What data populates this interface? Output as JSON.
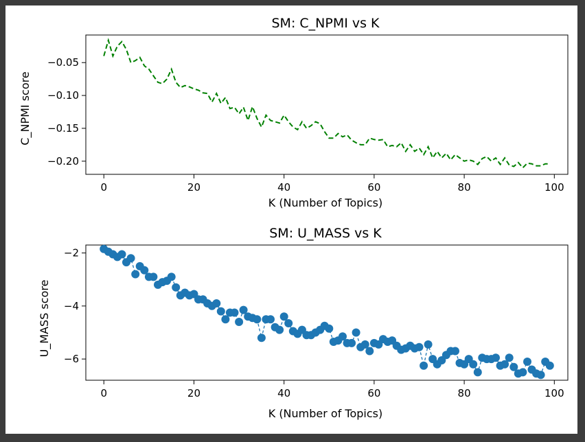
{
  "chart_data": [
    {
      "type": "line",
      "title": "SM: C_NPMI vs K",
      "xlabel": "K (Number of Topics)",
      "ylabel": "C_NPMI score",
      "xlim": [
        -4,
        103
      ],
      "ylim": [
        -0.22,
        -0.008
      ],
      "xticks": [
        0,
        20,
        40,
        60,
        80,
        100
      ],
      "xtick_labels": [
        "0",
        "20",
        "40",
        "60",
        "80",
        "100"
      ],
      "yticks": [
        -0.05,
        -0.1,
        -0.15,
        -0.2
      ],
      "ytick_labels": [
        "−0.05",
        "−0.10",
        "−0.15",
        "−0.20"
      ],
      "line_style": "dashed",
      "color": "#008000",
      "grid": false,
      "x": [
        0,
        1,
        2,
        3,
        4,
        5,
        6,
        7,
        8,
        9,
        10,
        11,
        12,
        13,
        14,
        15,
        16,
        17,
        18,
        19,
        20,
        21,
        22,
        23,
        24,
        25,
        26,
        27,
        28,
        29,
        30,
        31,
        32,
        33,
        34,
        35,
        36,
        37,
        38,
        39,
        40,
        41,
        42,
        43,
        44,
        45,
        46,
        47,
        48,
        49,
        50,
        51,
        52,
        53,
        54,
        55,
        56,
        57,
        58,
        59,
        60,
        61,
        62,
        63,
        64,
        65,
        66,
        67,
        68,
        69,
        70,
        71,
        72,
        73,
        74,
        75,
        76,
        77,
        78,
        79,
        80,
        81,
        82,
        83,
        84,
        85,
        86,
        87,
        88,
        89,
        90,
        91,
        92,
        93,
        94,
        95,
        96,
        97,
        98,
        99
      ],
      "y": [
        -0.04,
        -0.016,
        -0.04,
        -0.025,
        -0.018,
        -0.03,
        -0.05,
        -0.047,
        -0.042,
        -0.055,
        -0.06,
        -0.07,
        -0.08,
        -0.082,
        -0.075,
        -0.06,
        -0.08,
        -0.088,
        -0.085,
        -0.087,
        -0.09,
        -0.092,
        -0.096,
        -0.097,
        -0.11,
        -0.097,
        -0.112,
        -0.103,
        -0.12,
        -0.118,
        -0.128,
        -0.118,
        -0.138,
        -0.117,
        -0.135,
        -0.148,
        -0.13,
        -0.138,
        -0.14,
        -0.142,
        -0.13,
        -0.14,
        -0.148,
        -0.152,
        -0.14,
        -0.15,
        -0.146,
        -0.14,
        -0.143,
        -0.155,
        -0.165,
        -0.165,
        -0.158,
        -0.163,
        -0.16,
        -0.168,
        -0.172,
        -0.175,
        -0.175,
        -0.165,
        -0.167,
        -0.168,
        -0.167,
        -0.178,
        -0.176,
        -0.178,
        -0.172,
        -0.185,
        -0.175,
        -0.185,
        -0.18,
        -0.19,
        -0.178,
        -0.195,
        -0.185,
        -0.195,
        -0.188,
        -0.198,
        -0.19,
        -0.195,
        -0.2,
        -0.198,
        -0.2,
        -0.205,
        -0.196,
        -0.193,
        -0.2,
        -0.195,
        -0.205,
        -0.195,
        -0.206,
        -0.208,
        -0.202,
        -0.21,
        -0.203,
        -0.204,
        -0.207,
        -0.207,
        -0.204,
        -0.204
      ]
    },
    {
      "type": "scatter",
      "title": "SM: U_MASS vs K",
      "xlabel": "K (Number of Topics)",
      "ylabel": "U_MASS score",
      "xlim": [
        -4,
        103
      ],
      "ylim": [
        -6.8,
        -1.7
      ],
      "xticks": [
        0,
        20,
        40,
        60,
        80,
        100
      ],
      "xtick_labels": [
        "0",
        "20",
        "40",
        "60",
        "80",
        "100"
      ],
      "yticks": [
        -2,
        -4,
        -6
      ],
      "ytick_labels": [
        "−2",
        "−4",
        "−6"
      ],
      "line_style": "dashed line with circle markers",
      "color": "#1f77b4",
      "grid": false,
      "x": [
        0,
        1,
        2,
        3,
        4,
        5,
        6,
        7,
        8,
        9,
        10,
        11,
        12,
        13,
        14,
        15,
        16,
        17,
        18,
        19,
        20,
        21,
        22,
        23,
        24,
        25,
        26,
        27,
        28,
        29,
        30,
        31,
        32,
        33,
        34,
        35,
        36,
        37,
        38,
        39,
        40,
        41,
        42,
        43,
        44,
        45,
        46,
        47,
        48,
        49,
        50,
        51,
        52,
        53,
        54,
        55,
        56,
        57,
        58,
        59,
        60,
        61,
        62,
        63,
        64,
        65,
        66,
        67,
        68,
        69,
        70,
        71,
        72,
        73,
        74,
        75,
        76,
        77,
        78,
        79,
        80,
        81,
        82,
        83,
        84,
        85,
        86,
        87,
        88,
        89,
        90,
        91,
        92,
        93,
        94,
        95,
        96,
        97,
        98,
        99
      ],
      "y": [
        -1.85,
        -1.95,
        -2.05,
        -2.15,
        -2.05,
        -2.35,
        -2.2,
        -2.8,
        -2.5,
        -2.65,
        -2.9,
        -2.9,
        -3.2,
        -3.1,
        -3.05,
        -2.9,
        -3.3,
        -3.6,
        -3.5,
        -3.6,
        -3.55,
        -3.75,
        -3.75,
        -3.9,
        -4.0,
        -3.9,
        -4.2,
        -4.5,
        -4.25,
        -4.25,
        -4.6,
        -4.15,
        -4.4,
        -4.45,
        -4.5,
        -5.2,
        -4.5,
        -4.5,
        -4.8,
        -4.9,
        -4.4,
        -4.65,
        -4.95,
        -5.05,
        -4.9,
        -5.1,
        -5.1,
        -5.0,
        -4.9,
        -4.75,
        -4.85,
        -5.35,
        -5.3,
        -5.15,
        -5.4,
        -5.4,
        -5.0,
        -5.55,
        -5.45,
        -5.7,
        -5.4,
        -5.45,
        -5.25,
        -5.35,
        -5.3,
        -5.5,
        -5.65,
        -5.6,
        -5.5,
        -5.6,
        -5.55,
        -6.25,
        -5.45,
        -6.0,
        -6.2,
        -6.05,
        -5.85,
        -5.7,
        -5.7,
        -6.15,
        -6.2,
        -6.0,
        -6.2,
        -6.5,
        -5.95,
        -6.0,
        -6.0,
        -5.95,
        -6.25,
        -6.2,
        -5.95,
        -6.3,
        -6.55,
        -6.5,
        -6.1,
        -6.4,
        -6.55,
        -6.6,
        -6.1,
        -6.25
      ]
    }
  ]
}
